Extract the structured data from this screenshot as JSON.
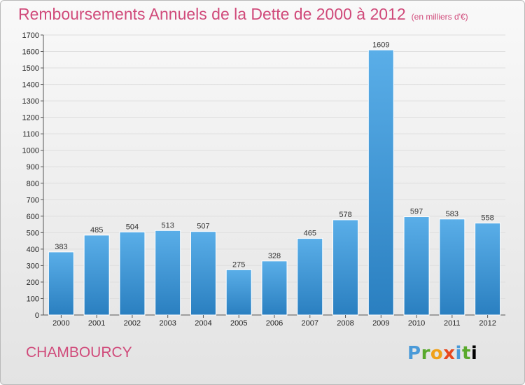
{
  "header": {
    "title": "Remboursements Annuels de la Dette de 2000 à 2012",
    "unit": "(en milliers d'€)"
  },
  "footer": {
    "city": "CHAMBOURCY",
    "logo_letters": [
      "P",
      "r",
      "o",
      "x",
      "i",
      "t",
      "i"
    ]
  },
  "colors": {
    "title": "#d04a7a",
    "bar_top": "#5aaee8",
    "bar_bottom": "#2a7fc0",
    "grid": "#dedede"
  },
  "chart_data": {
    "type": "bar",
    "title": "Remboursements Annuels de la Dette de 2000 à 2012",
    "categories": [
      "2000",
      "2001",
      "2002",
      "2003",
      "2004",
      "2005",
      "2006",
      "2007",
      "2008",
      "2009",
      "2010",
      "2011",
      "2012"
    ],
    "values": [
      383,
      485,
      504,
      513,
      507,
      275,
      328,
      465,
      578,
      1609,
      597,
      583,
      558
    ],
    "ylim": [
      0,
      1700
    ],
    "yticks": [
      0,
      100,
      200,
      300,
      400,
      500,
      600,
      700,
      800,
      900,
      1000,
      1100,
      1200,
      1300,
      1400,
      1500,
      1600,
      1700
    ],
    "grid": true,
    "xlabel": "",
    "ylabel": ""
  }
}
